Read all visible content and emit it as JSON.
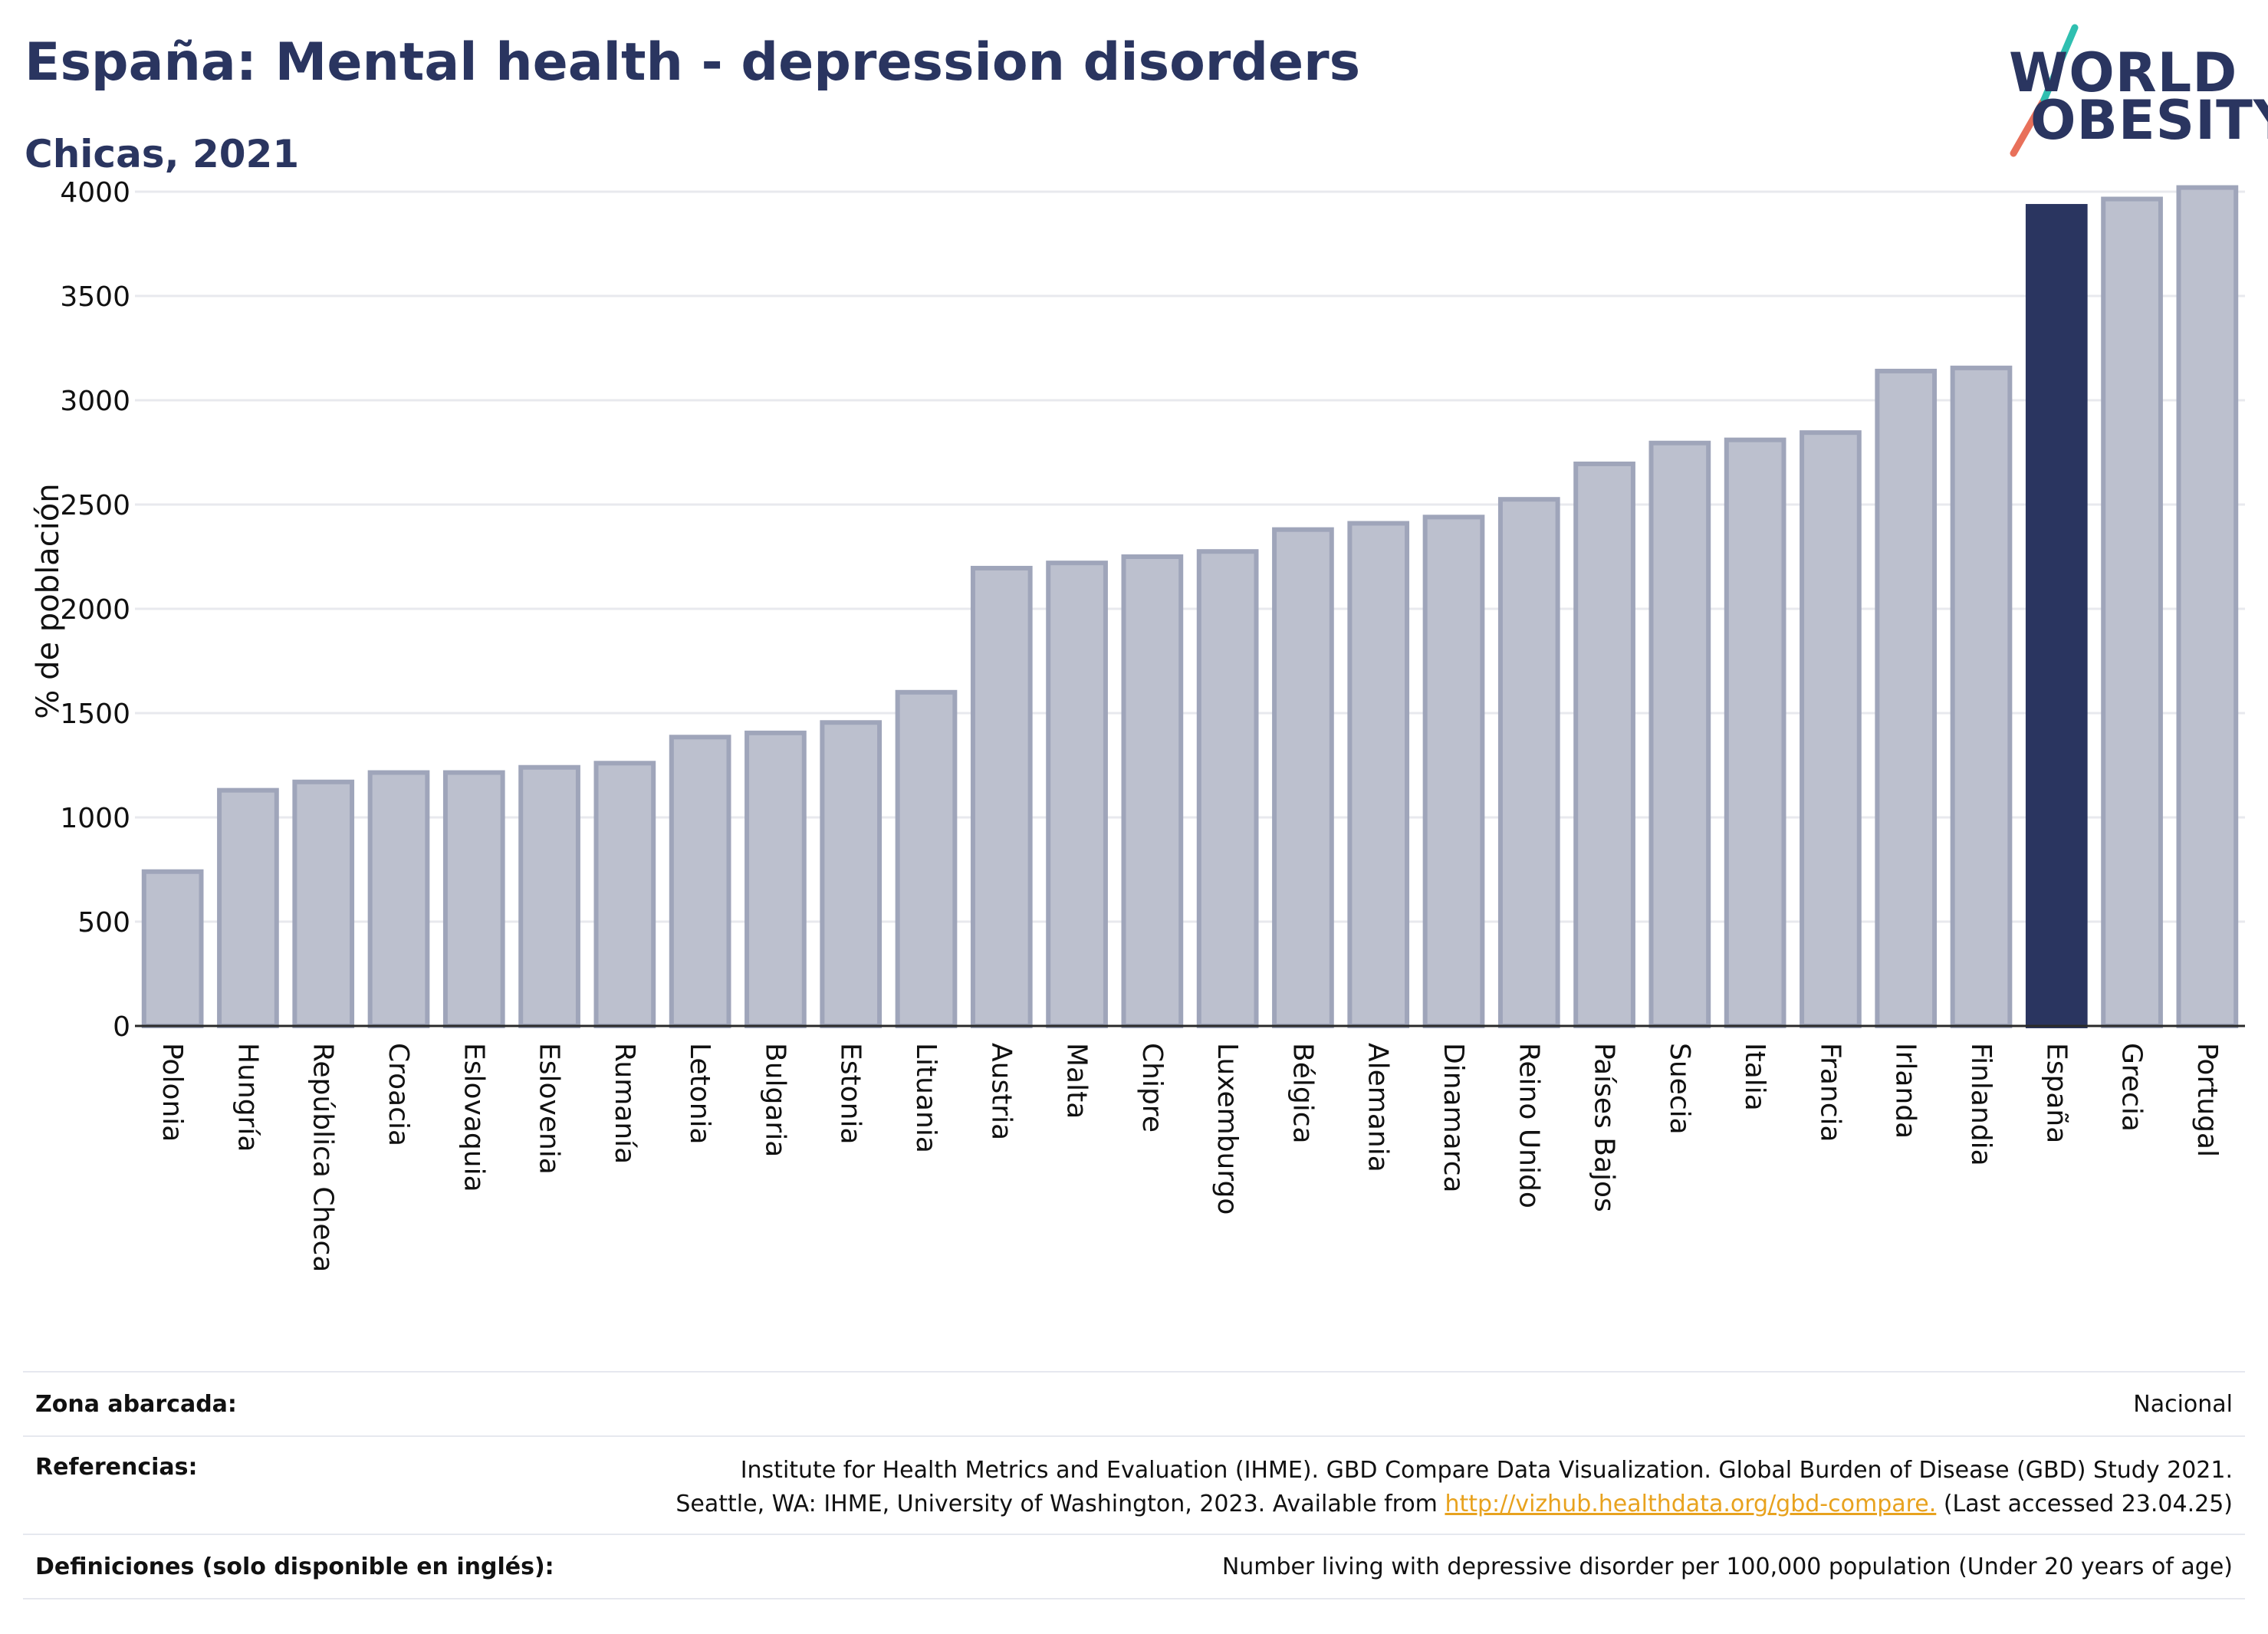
{
  "title": "España: Mental health - depression disorders",
  "subtitle": "Chicas, 2021",
  "logo": {
    "line1": "WORLD",
    "line2": "OBESITY"
  },
  "colors": {
    "bar": "#bcc0ce",
    "bar_stroke": "#9fa5ba",
    "highlight": "#2a3560",
    "grid": "#e8e9ee",
    "text": "#2a3560",
    "link": "#e8a21e"
  },
  "chart_data": {
    "type": "bar",
    "ylabel": "% de población",
    "ylim": [
      0,
      4000
    ],
    "yticks": [
      0,
      500,
      1000,
      1500,
      2000,
      2500,
      3000,
      3500,
      4000
    ],
    "highlight": "España",
    "grid": true,
    "categories": [
      "Polonia",
      "Hungría",
      "República Checa",
      "Croacia",
      "Eslovaquia",
      "Eslovenia",
      "Rumanía",
      "Letonia",
      "Bulgaria",
      "Estonia",
      "Lituania",
      "Austria",
      "Malta",
      "Chipre",
      "Luxemburgo",
      "Bélgica",
      "Alemania",
      "Dinamarca",
      "Reino Unido",
      "Países Bajos",
      "Suecia",
      "Italia",
      "Francia",
      "Irlanda",
      "Finlandia",
      "España",
      "Grecia",
      "Portugal"
    ],
    "values": [
      740,
      1130,
      1170,
      1215,
      1215,
      1240,
      1260,
      1385,
      1405,
      1455,
      1600,
      2195,
      2220,
      2250,
      2275,
      2380,
      2410,
      2440,
      2525,
      2695,
      2795,
      2810,
      2845,
      3140,
      3155,
      3930,
      3965,
      4020
    ]
  },
  "footer": {
    "scope_label": "Zona abarcada:",
    "scope_value": "Nacional",
    "refs_label": "Referencias:",
    "refs_line1": "Institute for Health Metrics and Evaluation (IHME). GBD Compare Data Visualization. Global Burden of Disease (GBD) Study 2021.",
    "refs_line2_pre": "Seattle, WA: IHME, University of Washington, 2023. Available from ",
    "refs_link": "http://vizhub.healthdata.org/gbd-compare.",
    "refs_line2_post": " (Last accessed 23.04.25)",
    "defs_label": "Definiciones (solo disponible en inglés):",
    "defs_value": "Number living with depressive disorder per 100,000 population (Under 20 years of age)"
  }
}
